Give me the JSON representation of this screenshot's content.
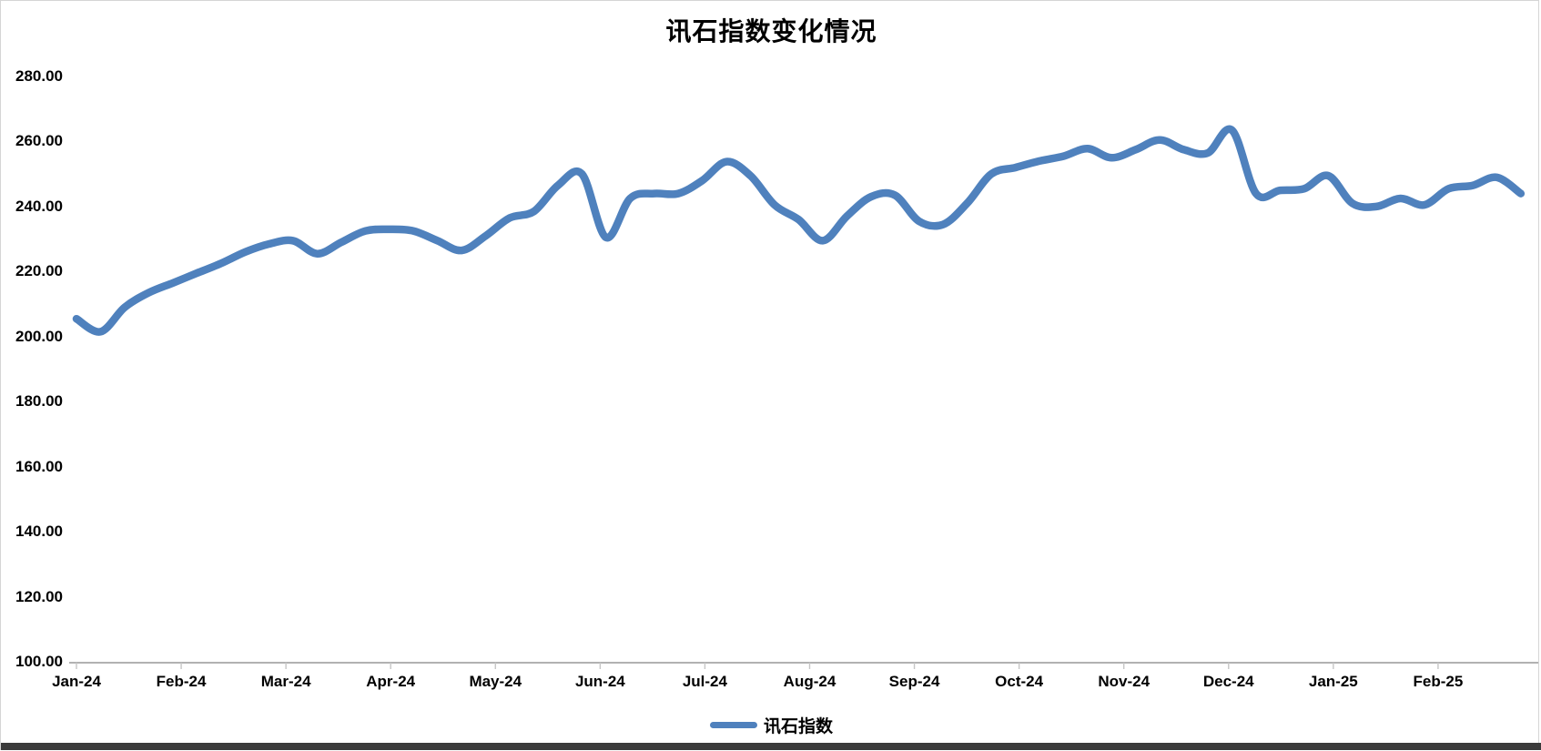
{
  "chart": {
    "title": "讯石指数变化情况"
  },
  "legend": {
    "label": "讯石指数"
  },
  "chart_data": {
    "type": "line",
    "title": "讯石指数变化情况",
    "smooth": true,
    "grid": false,
    "legend_position": "bottom",
    "x_frequency": "weekly",
    "x_tick_labels": [
      "Jan-24",
      "Feb-24",
      "Mar-24",
      "Apr-24",
      "May-24",
      "Jun-24",
      "Jul-24",
      "Aug-24",
      "Sep-24",
      "Oct-24",
      "Nov-24",
      "Dec-24",
      "Jan-25",
      "Feb-25"
    ],
    "ylim": [
      100,
      280
    ],
    "y_ticks": [
      280,
      260,
      240,
      220,
      200,
      180,
      160,
      140,
      120,
      100
    ],
    "y_tick_labels": [
      "280.00",
      "260.00",
      "240.00",
      "220.00",
      "200.00",
      "180.00",
      "160.00",
      "140.00",
      "120.00",
      "100.00"
    ],
    "series": [
      {
        "name": "讯石指数",
        "color": "#4F81BD",
        "values": [
          205.5,
          201.5,
          209,
          213.5,
          216.5,
          219.5,
          222.5,
          226,
          228.5,
          229.5,
          225.5,
          229,
          232.5,
          233,
          232.5,
          229.5,
          226.5,
          231,
          236.5,
          238.5,
          246.5,
          250,
          230.5,
          242.5,
          244,
          244,
          248,
          253.8,
          249.5,
          240.5,
          236,
          229.5,
          237,
          243,
          243.5,
          235.5,
          234.5,
          241,
          250,
          252,
          254,
          255.5,
          257.8,
          255,
          257.5,
          260.5,
          257.5,
          256.5,
          263.5,
          244,
          245,
          245.5,
          249.5,
          241,
          240,
          242.5,
          240.5,
          245.5,
          246.5,
          249,
          244
        ]
      }
    ],
    "axis_color": "#999999",
    "tick_color": "#c6c6c6"
  }
}
